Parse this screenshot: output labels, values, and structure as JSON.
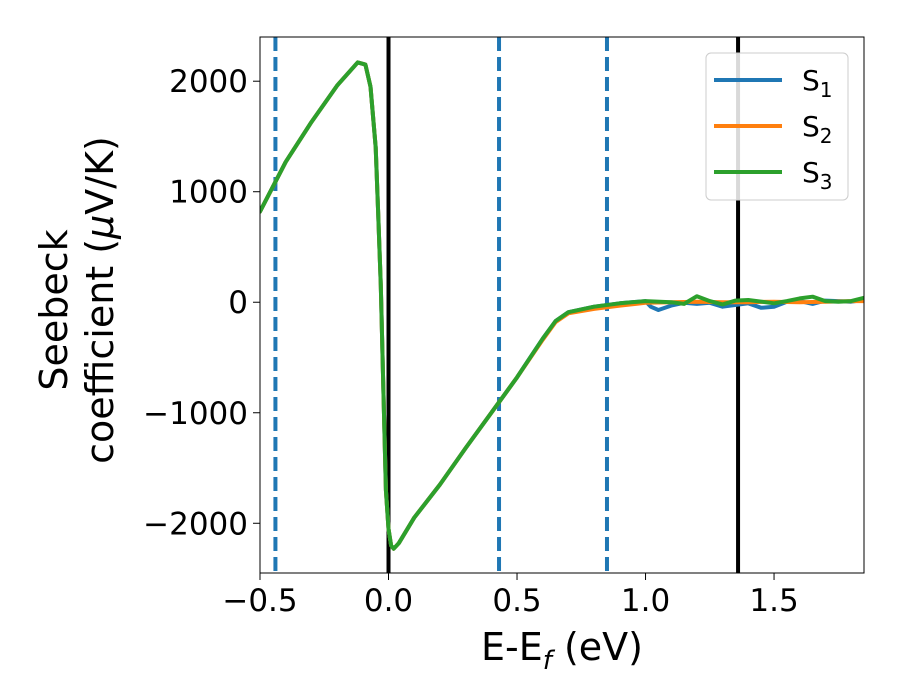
{
  "chart_data": {
    "type": "line",
    "xlabel": {
      "main": "E-E",
      "sub": "f",
      "rest": " (eV)"
    },
    "ylabel": {
      "line1": "Seebeck",
      "line2_prefix": "coefficient  (",
      "mu": "μ",
      "line2_suffix": "V/K)"
    },
    "xlim": [
      -0.5,
      1.85
    ],
    "ylim": [
      -2450,
      2400
    ],
    "xticks": [
      -0.5,
      0.0,
      0.5,
      1.0,
      1.5
    ],
    "xtick_labels": [
      "−0.5",
      "0.0",
      "0.5",
      "1.0",
      "1.5"
    ],
    "yticks": [
      -2000,
      -1000,
      0,
      1000,
      2000
    ],
    "ytick_labels": [
      "−2000",
      "−1000",
      "0",
      "1000",
      "2000"
    ],
    "grid": false,
    "legend_placement": "top-right",
    "vlines_solid": [
      0.0,
      1.36
    ],
    "vlines_dashed": [
      -0.44,
      0.43,
      0.85
    ],
    "series": [
      {
        "name": "S1",
        "label_main": "S",
        "label_sub": "1",
        "color": "#1f77b4",
        "x": [
          -0.5,
          -0.4,
          -0.3,
          -0.2,
          -0.12,
          -0.09,
          -0.07,
          -0.05,
          -0.04,
          -0.03,
          -0.02,
          -0.01,
          0.0,
          0.01,
          0.02,
          0.04,
          0.1,
          0.2,
          0.3,
          0.4,
          0.5,
          0.6,
          0.65,
          0.7,
          0.8,
          0.9,
          1.0,
          1.02,
          1.05,
          1.1,
          1.15,
          1.2,
          1.25,
          1.3,
          1.4,
          1.45,
          1.5,
          1.55,
          1.6,
          1.65,
          1.7,
          1.75,
          1.8,
          1.85
        ],
        "y": [
          820,
          1270,
          1630,
          1960,
          2170,
          2150,
          1950,
          1400,
          800,
          150,
          -800,
          -1700,
          -2050,
          -2200,
          -2230,
          -2180,
          -1950,
          -1650,
          -1320,
          -1000,
          -680,
          -330,
          -170,
          -90,
          -40,
          -10,
          10,
          -40,
          -70,
          -30,
          -5,
          -15,
          -5,
          -40,
          -10,
          -50,
          -40,
          5,
          10,
          -15,
          15,
          10,
          5,
          20
        ]
      },
      {
        "name": "S2",
        "label_main": "S",
        "label_sub": "2",
        "color": "#ff7f0e",
        "x": [
          -0.5,
          -0.4,
          -0.3,
          -0.2,
          -0.12,
          -0.09,
          -0.07,
          -0.05,
          -0.04,
          -0.03,
          -0.02,
          -0.01,
          0.0,
          0.01,
          0.02,
          0.04,
          0.1,
          0.2,
          0.3,
          0.4,
          0.5,
          0.6,
          0.65,
          0.7,
          0.8,
          0.9,
          1.0,
          1.1,
          1.2,
          1.3,
          1.4,
          1.5,
          1.6,
          1.7,
          1.8,
          1.85
        ],
        "y": [
          820,
          1270,
          1630,
          1960,
          2170,
          2150,
          1950,
          1400,
          800,
          150,
          -800,
          -1700,
          -2050,
          -2200,
          -2230,
          -2180,
          -1950,
          -1650,
          -1320,
          -1000,
          -680,
          -340,
          -180,
          -100,
          -60,
          -30,
          -5,
          0,
          5,
          0,
          0,
          5,
          0,
          5,
          10,
          10
        ]
      },
      {
        "name": "S3",
        "label_main": "S",
        "label_sub": "3",
        "color": "#2ca02c",
        "x": [
          -0.5,
          -0.4,
          -0.3,
          -0.2,
          -0.12,
          -0.09,
          -0.07,
          -0.05,
          -0.04,
          -0.03,
          -0.02,
          -0.01,
          0.0,
          0.01,
          0.02,
          0.04,
          0.1,
          0.2,
          0.3,
          0.4,
          0.5,
          0.6,
          0.65,
          0.7,
          0.8,
          0.9,
          1.0,
          1.1,
          1.15,
          1.2,
          1.25,
          1.3,
          1.35,
          1.4,
          1.5,
          1.55,
          1.6,
          1.65,
          1.7,
          1.75,
          1.8,
          1.85
        ],
        "y": [
          820,
          1270,
          1630,
          1960,
          2170,
          2150,
          1950,
          1400,
          800,
          150,
          -800,
          -1700,
          -2050,
          -2200,
          -2230,
          -2180,
          -1950,
          -1650,
          -1320,
          -1000,
          -680,
          -330,
          -170,
          -90,
          -40,
          -10,
          10,
          0,
          -15,
          55,
          10,
          -20,
          15,
          20,
          -10,
          10,
          35,
          50,
          10,
          5,
          10,
          40
        ]
      }
    ]
  }
}
